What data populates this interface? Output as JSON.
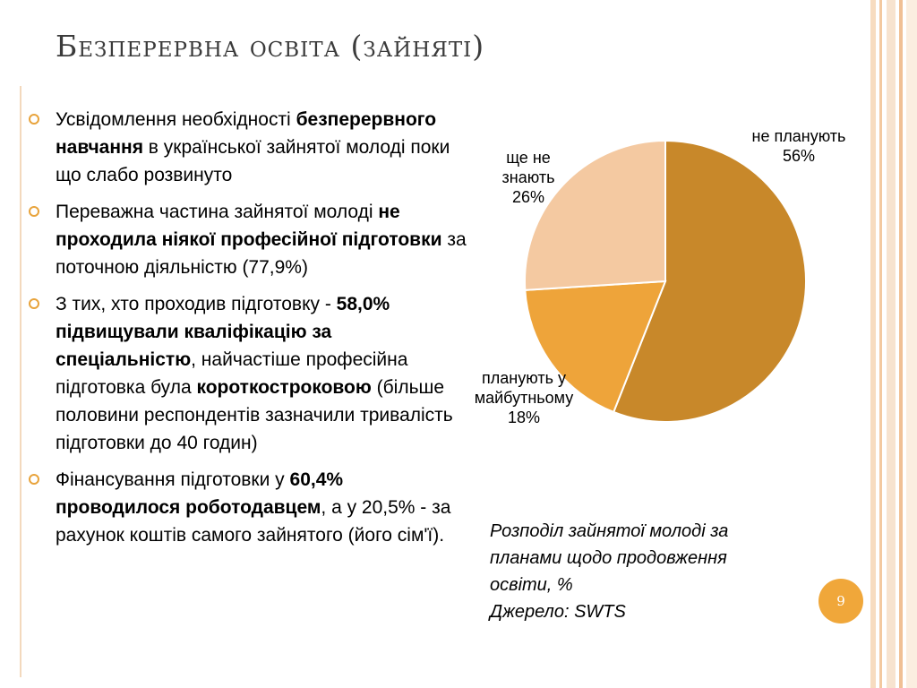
{
  "slide": {
    "title": "Безперервна освіта (зайняті)",
    "page_number": "9",
    "accent_color": "#e8a33b"
  },
  "bullets": [
    {
      "parts": [
        {
          "text": "Усвідомлення необхідності ",
          "bold": false
        },
        {
          "text": "безперервного навчання",
          "bold": true
        },
        {
          "text": " в української зайнятої молоді поки що слабо розвинуто",
          "bold": false
        }
      ]
    },
    {
      "parts": [
        {
          "text": "Переважна частина зайнятої  молоді ",
          "bold": false
        },
        {
          "text": "не проходила ніякої професійної підготовки",
          "bold": true
        },
        {
          "text": " за поточною діяльністю (77,9%)",
          "bold": false
        }
      ]
    },
    {
      "parts": [
        {
          "text": "З тих, хто проходив підготовку - ",
          "bold": false
        },
        {
          "text": "58,0% підвищували кваліфікацію за спеціальністю",
          "bold": true
        },
        {
          "text": ", найчастіше професійна підготовка була ",
          "bold": false
        },
        {
          "text": "короткостроковою",
          "bold": true
        },
        {
          "text": " (більше половини респондентів зазначили тривалість підготовки до 40 годин)",
          "bold": false
        }
      ]
    },
    {
      "parts": [
        {
          "text": "Фінансування підготовки у ",
          "bold": false
        },
        {
          "text": "60,4% проводилося роботодавцем",
          "bold": true
        },
        {
          "text": ", а у 20,5% - за рахунок коштів самого зайнятого (його сім'ї).",
          "bold": false
        }
      ]
    }
  ],
  "caption": {
    "line1": "Розподіл зайнятої молоді за",
    "line2": "планами щодо продовження",
    "line3": "освіти, %",
    "line4": "Джерело: SWTS"
  },
  "chart_data": {
    "type": "pie",
    "start_angle_deg": 0,
    "direction": "clockwise",
    "slices": [
      {
        "name": "не планують",
        "value": 56,
        "label": "56%",
        "color": "#c8882a"
      },
      {
        "name": "планують у майбутньому",
        "value": 18,
        "label": "18%",
        "color": "#eea43a"
      },
      {
        "name": "ще не знають",
        "value": 26,
        "label": "26%",
        "color": "#f4c9a1"
      }
    ]
  }
}
